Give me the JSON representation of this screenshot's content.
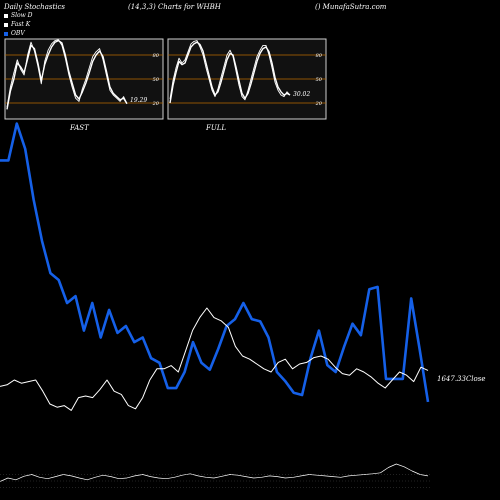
{
  "header": {
    "left": "Daily Stochastics",
    "mid": "(14,3,3) Charts for WHBH",
    "right": "() MunafaSutra.com"
  },
  "legend": [
    {
      "label": "Slow  D",
      "color": "#ffffff"
    },
    {
      "label": "Fast K",
      "color": "#ffffff"
    },
    {
      "label": "OBV",
      "color": "#1560e8"
    }
  ],
  "panels": {
    "fast": {
      "label": "FAST",
      "value": "19.29"
    },
    "full": {
      "label": "FULL",
      "value": "30.02"
    },
    "levels": [
      "80",
      "50",
      "20"
    ]
  },
  "close_label": "1647.33Close",
  "colors": {
    "obv": "#1560e8",
    "price": "#ffffff",
    "level": "#b86a00",
    "panel_bg": "#111111"
  },
  "chart_data": [
    {
      "type": "line",
      "panel": "fast-stochastic",
      "ylim": [
        0,
        100
      ],
      "series": [
        {
          "name": "Slow  D",
          "values": [
            12,
            35,
            50,
            70,
            65,
            58,
            75,
            92,
            88,
            70,
            48,
            68,
            80,
            90,
            96,
            98,
            95,
            80,
            60,
            45,
            30,
            25,
            34,
            45,
            58,
            72,
            80,
            85,
            78,
            60,
            40,
            32,
            28,
            24,
            26,
            19
          ]
        },
        {
          "name": "Fast K",
          "values": [
            15,
            40,
            58,
            74,
            62,
            55,
            80,
            96,
            85,
            66,
            44,
            72,
            86,
            94,
            98,
            99,
            92,
            76,
            56,
            40,
            26,
            22,
            38,
            50,
            64,
            78,
            84,
            88,
            74,
            55,
            36,
            30,
            26,
            22,
            28,
            19.29
          ]
        }
      ]
    },
    {
      "type": "line",
      "panel": "full-stochastic",
      "ylim": [
        0,
        100
      ],
      "series": [
        {
          "name": "Slow  D",
          "values": [
            20,
            42,
            58,
            72,
            68,
            70,
            80,
            90,
            94,
            96,
            93,
            85,
            70,
            55,
            40,
            30,
            34,
            46,
            60,
            74,
            82,
            80,
            65,
            48,
            32,
            26,
            32,
            44,
            58,
            72,
            82,
            88,
            90,
            84,
            70,
            52,
            40,
            34,
            30,
            32,
            30
          ]
        },
        {
          "name": "Fast K",
          "values": [
            25,
            48,
            64,
            76,
            70,
            74,
            84,
            94,
            97,
            98,
            90,
            80,
            64,
            50,
            36,
            28,
            38,
            52,
            66,
            80,
            86,
            78,
            60,
            42,
            28,
            24,
            36,
            50,
            64,
            78,
            86,
            92,
            92,
            80,
            64,
            46,
            36,
            30,
            28,
            34,
            30.02
          ]
        }
      ]
    },
    {
      "type": "line",
      "panel": "main",
      "series": [
        {
          "name": "OBV",
          "values": [
            82,
            82,
            98,
            87,
            65,
            47,
            33,
            30,
            20,
            23,
            8,
            20,
            5,
            17,
            7,
            10,
            3,
            5,
            -4,
            -6,
            -17,
            -17,
            -10,
            3,
            -6,
            -9,
            0,
            10,
            13,
            20,
            13,
            12,
            5,
            -10,
            -14,
            -19,
            -20,
            -4,
            8,
            -7,
            -10,
            1,
            11,
            6,
            26,
            27,
            -13,
            -13,
            -13,
            22,
            0,
            -23
          ]
        },
        {
          "name": "Price",
          "values": [
            51,
            52,
            55,
            53,
            54,
            55,
            48,
            40,
            38,
            39,
            36,
            44,
            45,
            44,
            49,
            55,
            48,
            46,
            39,
            37,
            44,
            55,
            62,
            62,
            64,
            60,
            73,
            86,
            94,
            100,
            94,
            92,
            88,
            76,
            70,
            68,
            65,
            62,
            60,
            66,
            68,
            62,
            65,
            66,
            69,
            70,
            68,
            63,
            59,
            58,
            62,
            60,
            57,
            53,
            50,
            55,
            60,
            58,
            54,
            63,
            61
          ]
        }
      ]
    },
    {
      "type": "line",
      "panel": "bottom-oscillator",
      "series": [
        {
          "name": "Oscillator",
          "values": [
            30,
            40,
            35,
            45,
            50,
            42,
            38,
            44,
            50,
            46,
            40,
            35,
            42,
            48,
            44,
            38,
            40,
            46,
            50,
            44,
            40,
            38,
            42,
            48,
            52,
            46,
            42,
            40,
            45,
            50,
            48,
            44,
            40,
            42,
            46,
            44,
            40,
            42,
            46,
            50,
            48,
            46,
            44,
            42,
            46,
            48,
            50,
            52,
            55,
            70,
            80,
            72,
            60,
            50,
            46
          ]
        }
      ]
    }
  ]
}
